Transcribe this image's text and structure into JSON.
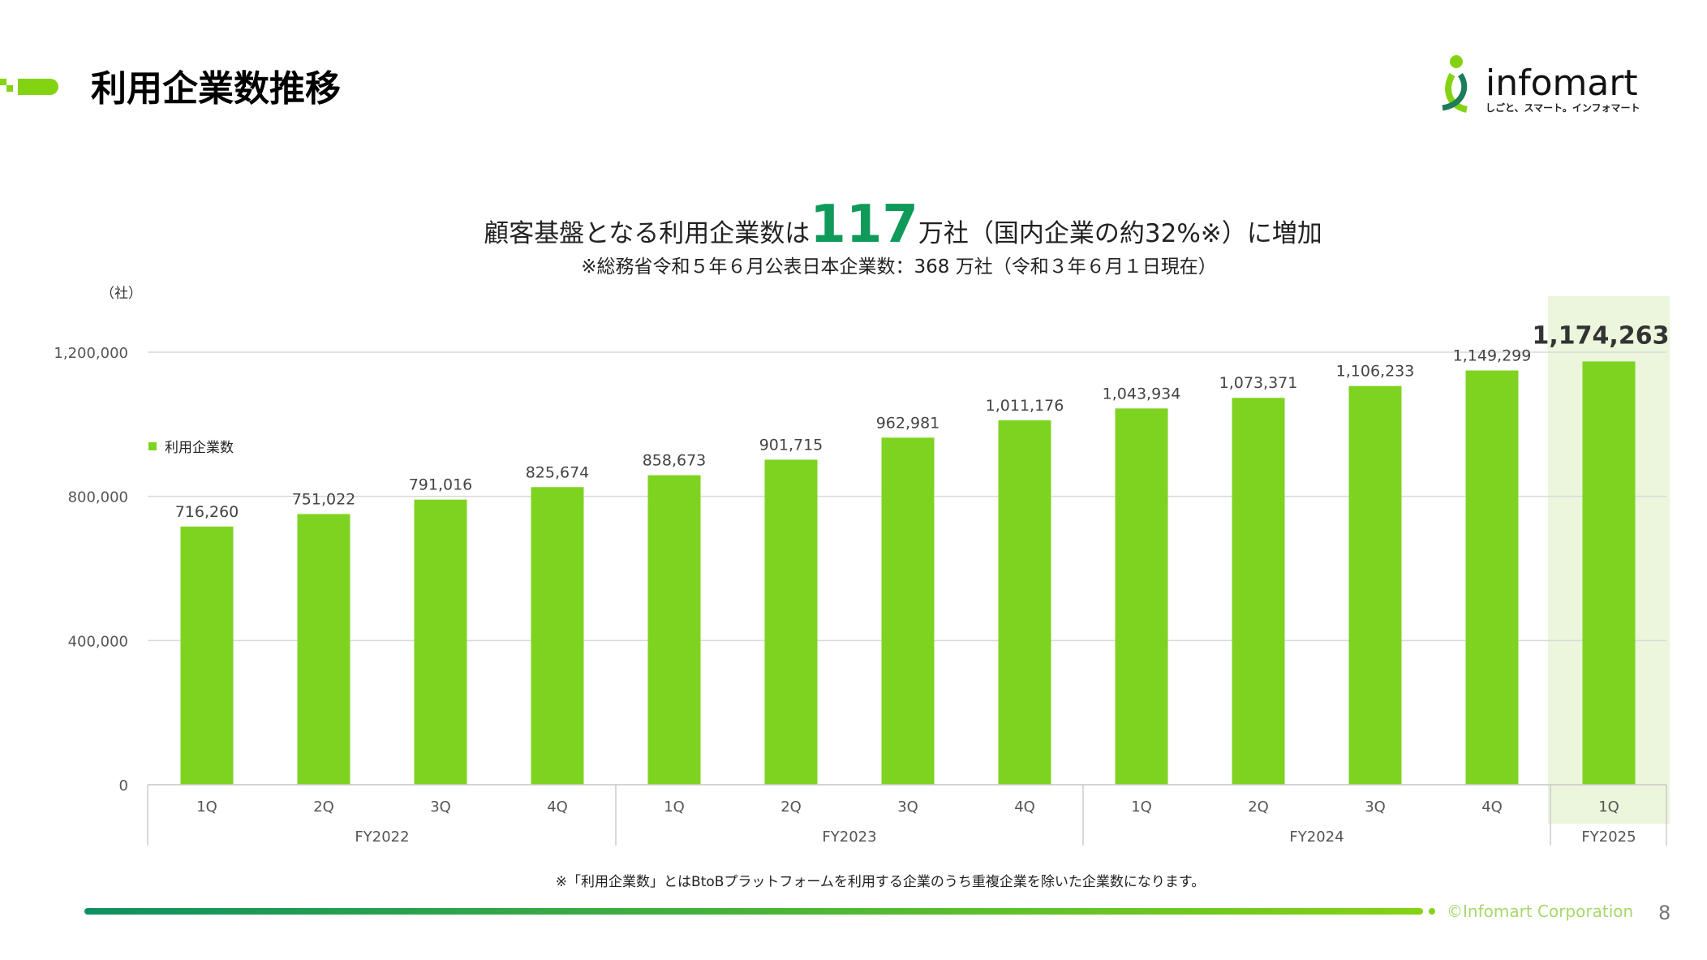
{
  "header": {
    "title": "利用企業数推移",
    "logo_text": "infomart",
    "logo_tagline": "しごと、スマート。インフォマート"
  },
  "headline": {
    "prefix": "顧客基盤となる利用企業数は",
    "highlight": "117",
    "suffix": "万社（国内企業の約32%※）に増加",
    "note": "※総務省令和５年６月公表日本企業数：368 万社（令和３年６月１日現在）"
  },
  "colors": {
    "bar": "#7ed321",
    "highlight_band": "#ebf6dc",
    "accent_text": "#0f9a5a"
  },
  "chart_data": {
    "type": "bar",
    "ylabel": "（社）",
    "ylim": [
      0,
      1200000
    ],
    "yticks": [
      "0",
      "400,000",
      "800,000",
      "1,200,000"
    ],
    "ytick_values": [
      0,
      400000,
      800000,
      1200000
    ],
    "grid": true,
    "legend": {
      "position": "left",
      "entries": [
        "利用企業数"
      ]
    },
    "categories": [
      "1Q",
      "2Q",
      "3Q",
      "4Q",
      "1Q",
      "2Q",
      "3Q",
      "4Q",
      "1Q",
      "2Q",
      "3Q",
      "4Q",
      "1Q"
    ],
    "groups": [
      {
        "label": "FY2022",
        "count": 4
      },
      {
        "label": "FY2023",
        "count": 4
      },
      {
        "label": "FY2024",
        "count": 4
      },
      {
        "label": "FY2025",
        "count": 1
      }
    ],
    "series": [
      {
        "name": "利用企業数",
        "values": [
          716260,
          751022,
          791016,
          825674,
          858673,
          901715,
          962981,
          1011176,
          1043934,
          1073371,
          1106233,
          1149299,
          1174263
        ]
      }
    ],
    "data_labels": [
      "716,260",
      "751,022",
      "791,016",
      "825,674",
      "858,673",
      "901,715",
      "962,981",
      "1,011,176",
      "1,043,934",
      "1,073,371",
      "1,106,233",
      "1,149,299",
      "1,174,263"
    ],
    "highlighted_index": 12
  },
  "footer": {
    "footnote": "※「利用企業数」とはBtoBプラットフォームを利用する企業のうち重複企業を除いた企業数になります。",
    "copyright": "©Infomart Corporation",
    "page_number": "8"
  }
}
